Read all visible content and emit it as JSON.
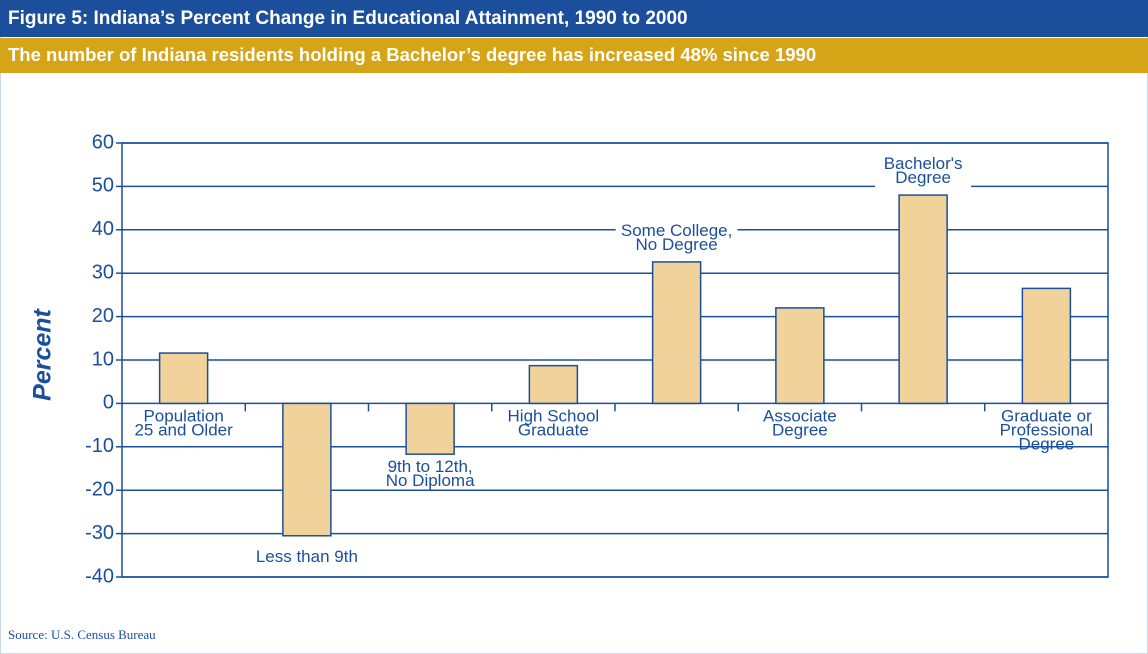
{
  "chart_data": {
    "type": "bar",
    "title": "Figure 5: Indiana’s Percent Change in Educational Attainment, 1990 to 2000",
    "subtitle": "The number of Indiana residents holding a Bachelor’s degree has increased 48% since 1990",
    "y_label": "Percent",
    "source": "Source: U.S. Census Bureau",
    "categories": [
      [
        "Population",
        "25 and Older"
      ],
      [
        "Less than 9th"
      ],
      [
        "9th to 12th,",
        "No Diploma"
      ],
      [
        "High School",
        "Graduate"
      ],
      [
        "Some College,",
        "No Degree"
      ],
      [
        "Associate",
        "Degree"
      ],
      [
        "Bachelor's",
        "Degree"
      ],
      [
        "Graduate or",
        "Professional",
        "Degree"
      ]
    ],
    "values": [
      11.6,
      -30.5,
      -11.7,
      8.7,
      32.6,
      22,
      48,
      26.5
    ],
    "color": "#f2d29b",
    "edge_color": "#1b4f9c",
    "ylim": [
      -40,
      60
    ],
    "yticks": [
      -40,
      -30,
      -20,
      -10,
      0,
      10,
      20,
      30,
      40,
      50,
      60
    ],
    "grid": true
  }
}
